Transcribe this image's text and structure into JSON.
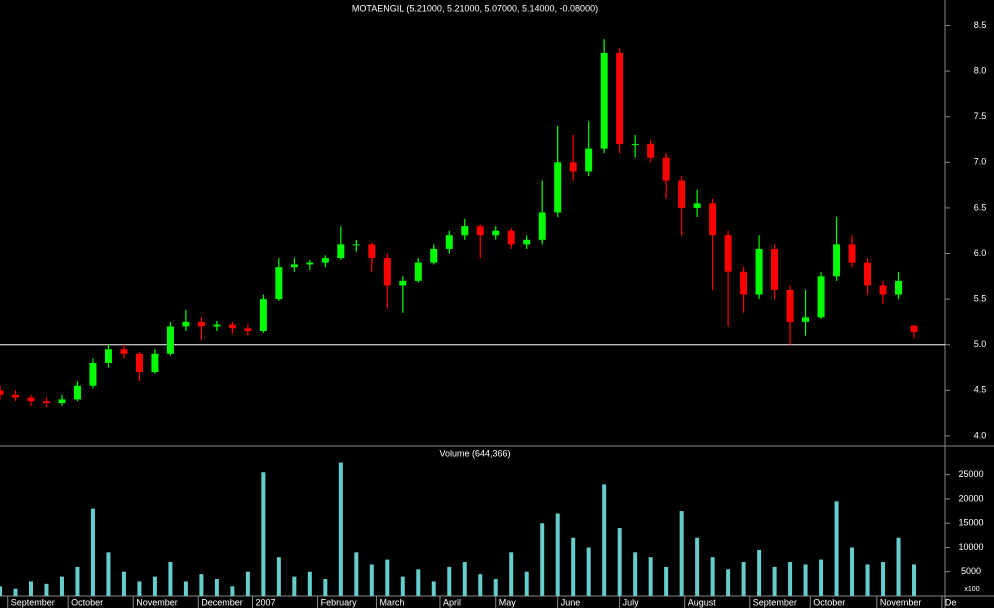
{
  "chart_data": [
    {
      "type": "candlestick",
      "title": "MOTAENGIL (5.21000, 5.21000, 5.07000, 5.14000, -0.08000)",
      "x": [
        0,
        1,
        2,
        3,
        4,
        5,
        6,
        7,
        8,
        9,
        10,
        11,
        12,
        13,
        14,
        15,
        16,
        17,
        18,
        19,
        20,
        21,
        22,
        23,
        24,
        25,
        26,
        27,
        28,
        29,
        30,
        31,
        32,
        33,
        34,
        35,
        36,
        37,
        38,
        39,
        40,
        41,
        42,
        43,
        44,
        45,
        46,
        47,
        48,
        49,
        50,
        51,
        52,
        53,
        54,
        55,
        56,
        57,
        58,
        59
      ],
      "open": [
        4.5,
        4.45,
        4.42,
        4.38,
        4.36,
        4.4,
        4.55,
        4.8,
        4.95,
        4.9,
        4.7,
        4.9,
        5.2,
        5.25,
        5.2,
        5.22,
        5.18,
        5.15,
        5.5,
        5.85,
        5.88,
        5.9,
        5.95,
        6.1,
        6.1,
        5.95,
        5.65,
        5.7,
        5.9,
        6.05,
        6.2,
        6.3,
        6.2,
        6.25,
        6.1,
        6.15,
        6.45,
        7.0,
        6.9,
        7.15,
        8.2,
        7.2,
        7.2,
        7.05,
        6.8,
        6.5,
        6.55,
        6.2,
        5.8,
        5.55,
        6.05,
        5.6,
        5.25,
        5.3,
        5.75,
        6.1,
        5.9,
        5.65,
        5.55,
        5.21
      ],
      "high": [
        4.55,
        4.5,
        4.45,
        4.42,
        4.45,
        4.6,
        4.85,
        5.0,
        5.0,
        4.92,
        4.95,
        5.25,
        5.38,
        5.3,
        5.26,
        5.25,
        5.22,
        5.55,
        5.95,
        5.95,
        5.93,
        5.98,
        6.3,
        6.15,
        6.12,
        6.0,
        5.75,
        5.95,
        6.1,
        6.25,
        6.38,
        6.32,
        6.3,
        6.28,
        6.2,
        6.8,
        7.4,
        7.3,
        7.45,
        8.35,
        8.25,
        7.3,
        7.25,
        7.1,
        6.85,
        6.7,
        6.6,
        6.25,
        5.85,
        6.2,
        6.1,
        5.65,
        5.6,
        5.8,
        6.4,
        6.2,
        5.95,
        5.7,
        5.8,
        5.21
      ],
      "low": [
        4.4,
        4.38,
        4.33,
        4.32,
        4.33,
        4.38,
        4.52,
        4.75,
        4.85,
        4.6,
        4.68,
        4.88,
        5.15,
        5.05,
        5.15,
        5.12,
        5.1,
        5.13,
        5.48,
        5.8,
        5.82,
        5.85,
        5.93,
        6.02,
        5.8,
        5.4,
        5.35,
        5.68,
        5.88,
        6.0,
        6.15,
        5.95,
        6.15,
        6.05,
        6.05,
        6.1,
        6.4,
        6.8,
        6.85,
        7.1,
        7.1,
        7.05,
        7.0,
        6.6,
        6.2,
        6.4,
        5.6,
        5.2,
        5.35,
        5.5,
        5.5,
        5.0,
        5.1,
        5.28,
        5.7,
        5.85,
        5.55,
        5.45,
        5.5,
        5.07
      ],
      "close": [
        4.45,
        4.42,
        4.38,
        4.36,
        4.4,
        4.55,
        4.8,
        4.95,
        4.9,
        4.7,
        4.9,
        5.2,
        5.25,
        5.2,
        5.22,
        5.18,
        5.15,
        5.5,
        5.85,
        5.88,
        5.9,
        5.95,
        6.1,
        6.1,
        5.95,
        5.65,
        5.7,
        5.9,
        6.05,
        6.2,
        6.3,
        6.2,
        6.25,
        6.1,
        6.15,
        6.45,
        7.0,
        6.9,
        7.15,
        8.2,
        7.2,
        7.2,
        7.05,
        6.8,
        6.5,
        6.55,
        6.2,
        5.8,
        5.55,
        6.05,
        5.6,
        5.25,
        5.3,
        5.75,
        6.1,
        5.9,
        5.65,
        5.55,
        5.7,
        5.14
      ],
      "up_color": "#00ff00",
      "down_color": "#ff0000",
      "xlim": [
        0,
        61
      ],
      "xticks": [
        {
          "value": 0.5,
          "label": "September"
        },
        {
          "value": 4.4,
          "label": "October"
        },
        {
          "value": 8.6,
          "label": "November"
        },
        {
          "value": 12.8,
          "label": "December"
        },
        {
          "value": 16.3,
          "label": "2007"
        },
        {
          "value": 20.5,
          "label": "February"
        },
        {
          "value": 24.3,
          "label": "March"
        },
        {
          "value": 28.4,
          "label": "April"
        },
        {
          "value": 32,
          "label": "May"
        },
        {
          "value": 36,
          "label": "June"
        },
        {
          "value": 40,
          "label": "July"
        },
        {
          "value": 44.2,
          "label": "August"
        },
        {
          "value": 48.4,
          "label": "September"
        },
        {
          "value": 52.3,
          "label": "October"
        },
        {
          "value": 56.6,
          "label": "November"
        },
        {
          "value": 60.8,
          "label": "De"
        }
      ],
      "ylim": [
        3.9,
        8.78
      ],
      "yticks": [
        {
          "value": 4,
          "label": "4.0"
        },
        {
          "value": 4.5,
          "label": "4.5"
        },
        {
          "value": 5,
          "label": "5.0"
        },
        {
          "value": 5.5,
          "label": "5.5"
        },
        {
          "value": 6,
          "label": "6.0"
        },
        {
          "value": 6.5,
          "label": "6.5"
        },
        {
          "value": 7,
          "label": "7.0"
        },
        {
          "value": 7.5,
          "label": "7.5"
        },
        {
          "value": 8,
          "label": "8.0"
        },
        {
          "value": 8.5,
          "label": "8.5"
        }
      ],
      "hline": 5
    },
    {
      "type": "bar",
      "title": "Volume (644,366)",
      "values": [
        2000,
        1500,
        3000,
        2500,
        4000,
        6000,
        18000,
        9000,
        5000,
        3000,
        4000,
        7000,
        3000,
        4500,
        3500,
        2000,
        5000,
        25500,
        8000,
        4000,
        5000,
        3500,
        27500,
        9000,
        6500,
        7500,
        4000,
        5500,
        3000,
        6000,
        7000,
        4500,
        3500,
        9000,
        5000,
        15000,
        17000,
        12000,
        10000,
        23000,
        14000,
        9000,
        8000,
        6000,
        17500,
        12000,
        8000,
        5500,
        7000,
        9500,
        6000,
        7000,
        6500,
        7500,
        19500,
        10000,
        6500,
        7000,
        12000,
        6500
      ],
      "color": "#66cccc",
      "ylim": [
        0,
        30700
      ],
      "yticks": [
        5000,
        10000,
        15000,
        20000,
        25000
      ],
      "unit": "x100"
    }
  ]
}
